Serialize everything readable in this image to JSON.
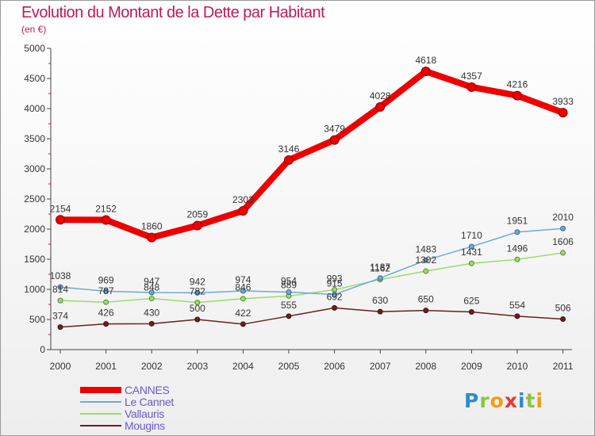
{
  "title": "Evolution du Montant de la Dette par Habitant",
  "subtitle": "(en €)",
  "logo": "Proxiti",
  "chart_data": {
    "type": "line",
    "title": "Evolution du Montant de la Dette par Habitant",
    "subtitle": "(en €)",
    "x": [
      "2000",
      "2001",
      "2002",
      "2003",
      "2004",
      "2005",
      "2006",
      "2007",
      "2008",
      "2009",
      "2010",
      "2011"
    ],
    "yticks": [
      "0",
      "500",
      "1000",
      "1500",
      "2000",
      "2500",
      "3000",
      "3500",
      "4000",
      "4500",
      "5000"
    ],
    "ylim": [
      0,
      5000
    ],
    "grid": false,
    "legend": "bottom-left",
    "series": [
      {
        "name": "CANNES",
        "color": "#ee0000",
        "values": [
          2154,
          2152,
          1860,
          2059,
          2303,
          3146,
          3479,
          4028,
          4618,
          4357,
          4216,
          3933
        ]
      },
      {
        "name": "Le Cannet",
        "color": "#6fa8dc",
        "values": [
          1038,
          969,
          947,
          942,
          974,
          954,
          915,
          1187,
          1483,
          1710,
          1951,
          2010
        ]
      },
      {
        "name": "Vallauris",
        "color": "#99dd66",
        "values": [
          814,
          787,
          848,
          782,
          846,
          889,
          993,
          1162,
          1302,
          1431,
          1496,
          1606
        ]
      },
      {
        "name": "Mougins",
        "color": "#6b1f1f",
        "values": [
          374,
          426,
          430,
          500,
          422,
          555,
          692,
          630,
          650,
          625,
          554,
          506
        ]
      }
    ]
  }
}
